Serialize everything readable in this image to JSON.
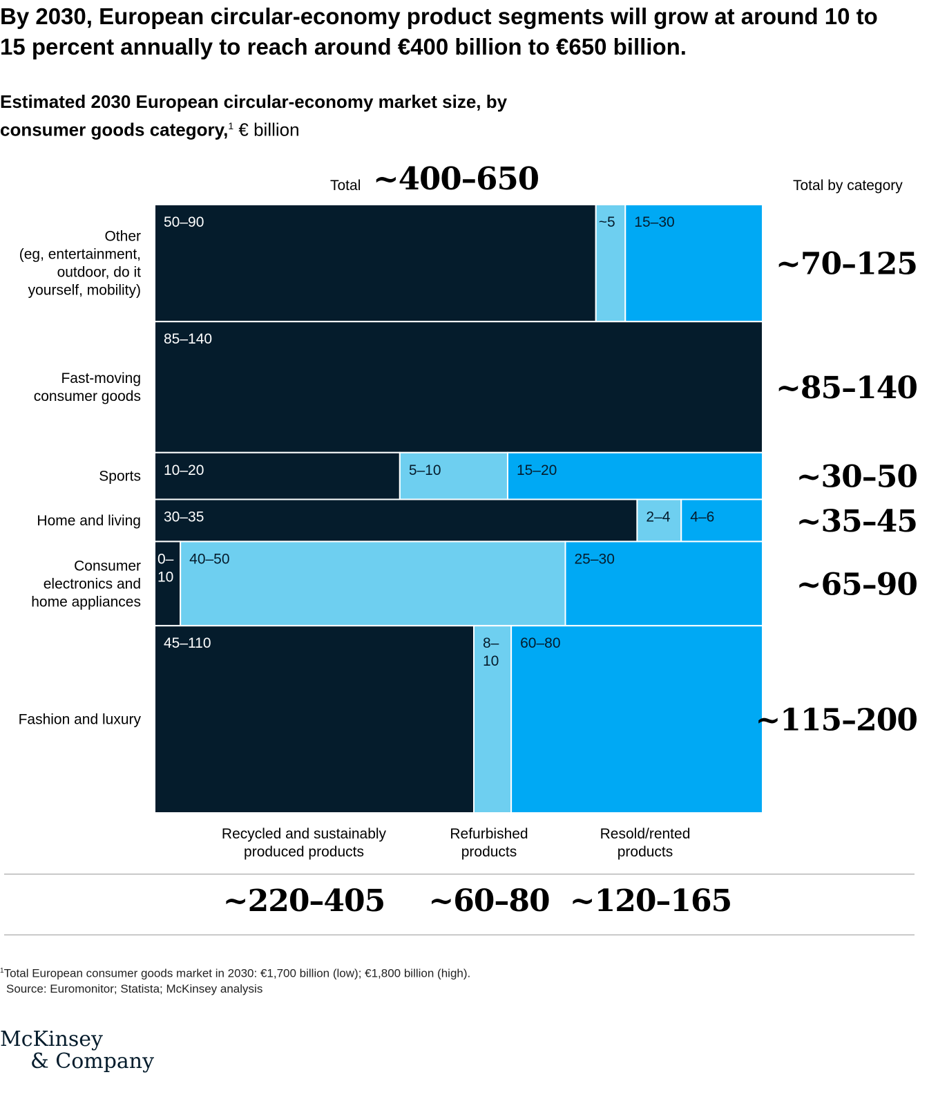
{
  "title": "By 2030, European circular-economy product segments will grow at around 10 to 15 percent annually to reach around €400 billion to €650 billion.",
  "subtitle": {
    "bold": "Estimated 2030 European circular-economy market size, by consumer goods category,",
    "footnote_marker": "1",
    "unit": "€ billion"
  },
  "total_label": "Total",
  "total_value": "~400–650",
  "category_total_header": "Total by category",
  "colors": {
    "recycled": "#051c2c",
    "refurbished": "#6ecff0",
    "resold": "#00a9f4"
  },
  "chart_data": {
    "type": "marimekko",
    "unit": "€ billion",
    "series": [
      {
        "name": "Recycled and sustainably produced products",
        "total": "~220–405"
      },
      {
        "name": "Refurbished products",
        "total": "~60–80"
      },
      {
        "name": "Resold/rented products",
        "total": "~120–165"
      }
    ],
    "rows": [
      {
        "category": [
          "Other",
          "(eg, entertainment,",
          "outdoor, do it",
          "yourself, mobility)"
        ],
        "total": "~70–125",
        "height": 125,
        "cells": [
          {
            "series": 0,
            "label": [
              "50–90"
            ],
            "value": 90
          },
          {
            "series": 1,
            "label": [
              "~5"
            ],
            "value": 6
          },
          {
            "series": 2,
            "label": [
              "15–30"
            ],
            "value": 28
          }
        ]
      },
      {
        "category": [
          "Fast-moving",
          "consumer goods"
        ],
        "total": "~85–140",
        "height": 140,
        "cells": [
          {
            "series": 0,
            "label": [
              "85–140"
            ],
            "value": 140
          }
        ]
      },
      {
        "category": [
          "Sports"
        ],
        "total": "~30–50",
        "height": 50,
        "cells": [
          {
            "series": 0,
            "label": [
              "10–20"
            ],
            "value": 20
          },
          {
            "series": 1,
            "label": [
              "5–10"
            ],
            "value": 8.8
          },
          {
            "series": 2,
            "label": [
              "15–20"
            ],
            "value": 20.8
          }
        ]
      },
      {
        "category": [
          "Home and living"
        ],
        "total": "~35–45",
        "height": 45,
        "cells": [
          {
            "series": 0,
            "label": [
              "30–35"
            ],
            "value": 35
          },
          {
            "series": 1,
            "label": [
              "2–4"
            ],
            "value": 3.2
          },
          {
            "series": 2,
            "label": [
              "4–6"
            ],
            "value": 5.9
          }
        ]
      },
      {
        "category": [
          "Consumer",
          "electronics and",
          "home appliances"
        ],
        "total": "~65–90",
        "height": 90,
        "cells": [
          {
            "series": 0,
            "label": [
              "0–",
              "10"
            ],
            "value": 3.8
          },
          {
            "series": 1,
            "label": [
              "40–50"
            ],
            "value": 57
          },
          {
            "series": 2,
            "label": [
              "25–30"
            ],
            "value": 29.2
          }
        ]
      },
      {
        "category": [
          "Fashion and luxury"
        ],
        "total": "~115–200",
        "height": 200,
        "cells": [
          {
            "series": 0,
            "label": [
              "45–110"
            ],
            "value": 105
          },
          {
            "series": 1,
            "label": [
              "8–",
              "10"
            ],
            "value": 12.3
          },
          {
            "series": 2,
            "label": [
              "60–80"
            ],
            "value": 82.7
          }
        ]
      }
    ]
  },
  "column_labels": [
    [
      "Recycled and sustainably",
      "produced products"
    ],
    [
      "Refurbished",
      "products"
    ],
    [
      "Resold/rented",
      "products"
    ]
  ],
  "footnote": {
    "marker": "1",
    "text": "Total European consumer goods market in 2030: €1,700 billion (low); €1,800 billion (high).",
    "source": "Source: Euromonitor; Statista; McKinsey analysis"
  },
  "logo": {
    "line1": "McKinsey",
    "line2": "& Company"
  }
}
